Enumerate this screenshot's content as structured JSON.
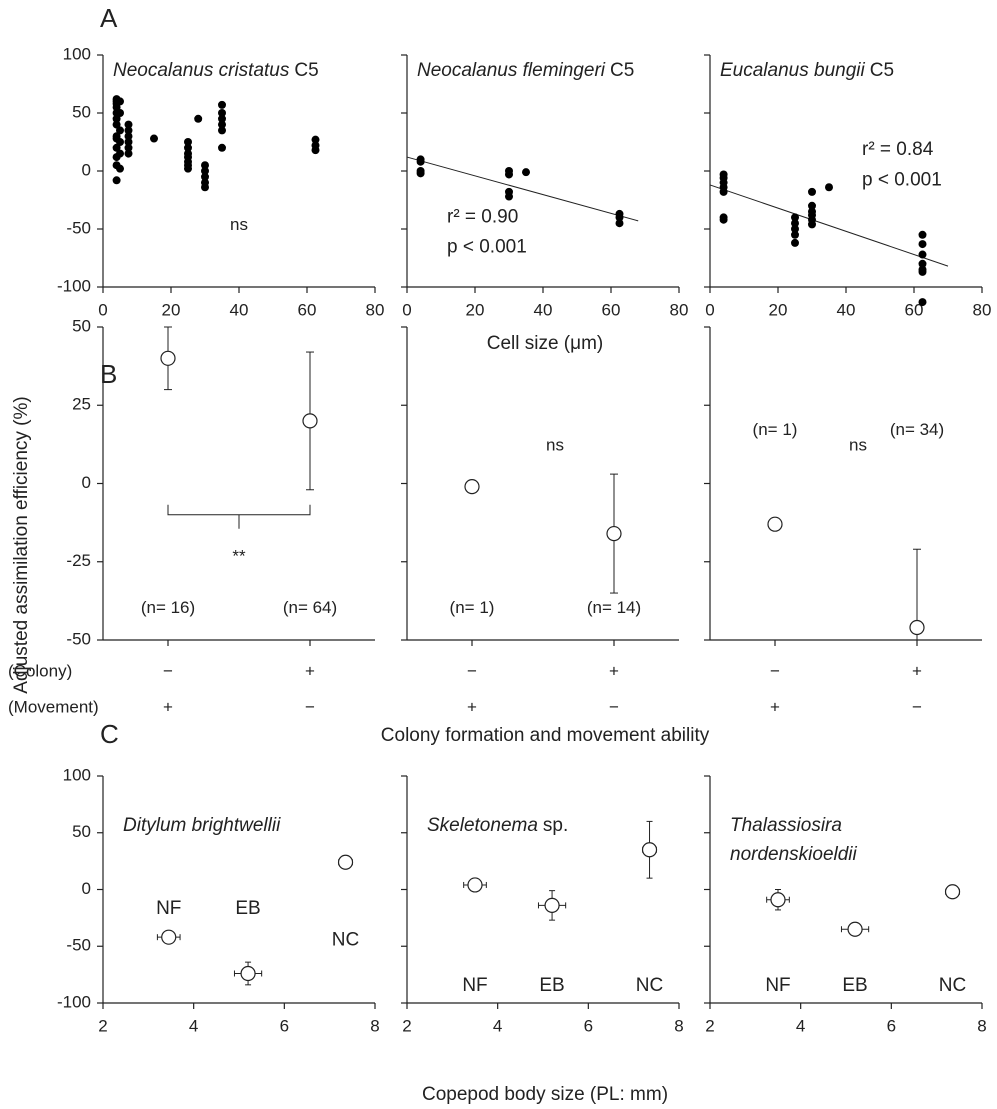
{
  "panel_labels": [
    "A",
    "B",
    "C"
  ],
  "ylabel": "Adjusted assimilation efficiency (%)",
  "xlabels": [
    "Cell size (μm)",
    "Colony formation and movement ability",
    "Copepod body size (PL: mm)"
  ],
  "row_labels": [
    "(Colony)",
    "(Movement)"
  ],
  "chart_data": [
    {
      "type": "scatter",
      "title": "Neocalanus cristatus",
      "title_suffix": "C5",
      "x": [
        4,
        4,
        4,
        4,
        4,
        4,
        4,
        4,
        4,
        4,
        4,
        4,
        4,
        5,
        5,
        5,
        5,
        5,
        5,
        7.5,
        7.5,
        7.5,
        7.5,
        7.5,
        7.5,
        15,
        25,
        25,
        25,
        25,
        25,
        25,
        25,
        28,
        30,
        30,
        30,
        30,
        30,
        35,
        35,
        35,
        35,
        35,
        35,
        62.5,
        62.5,
        62.5
      ],
      "y": [
        62,
        60,
        58,
        55,
        50,
        45,
        40,
        30,
        28,
        20,
        12,
        5,
        -8,
        60,
        50,
        35,
        25,
        15,
        2,
        40,
        35,
        30,
        25,
        20,
        15,
        28,
        25,
        20,
        15,
        12,
        8,
        5,
        2,
        45,
        5,
        0,
        -5,
        -10,
        -14,
        57,
        50,
        45,
        40,
        35,
        20,
        27,
        22,
        18
      ],
      "xlim": [
        0,
        80
      ],
      "ylim": [
        -100,
        100
      ],
      "xticks": [
        0,
        20,
        40,
        60,
        80
      ],
      "yticks": [
        100,
        50,
        0,
        -50,
        -100
      ],
      "ytick_labels": true,
      "color": "#000000",
      "note": "ns"
    },
    {
      "type": "scatter",
      "title": "Neocalanus flemingeri",
      "title_suffix": "C5",
      "x": [
        4,
        4,
        4,
        4,
        30,
        30,
        30,
        30,
        35,
        62.5,
        62.5,
        62.5
      ],
      "y": [
        10,
        8,
        0,
        -2,
        0,
        -3,
        -18,
        -22,
        -1,
        -37,
        -40,
        -45
      ],
      "fit": {
        "x": [
          0,
          68
        ],
        "y": [
          12,
          -43
        ]
      },
      "stats": [
        "r² = 0.90",
        "p < 0.001"
      ],
      "stats_position": "lower-left",
      "xlim": [
        0,
        80
      ],
      "ylim": [
        -100,
        100
      ],
      "xticks": [
        0,
        20,
        40,
        60,
        80
      ],
      "yticks": [
        100,
        50,
        0,
        -50,
        -100
      ],
      "ytick_labels": false,
      "color": "#000000"
    },
    {
      "type": "scatter",
      "title": "Eucalanus bungii",
      "title_suffix": "C5",
      "x": [
        4,
        4,
        4,
        4,
        4,
        4,
        4,
        25,
        25,
        25,
        25,
        25,
        30,
        30,
        30,
        30,
        30,
        30,
        35,
        62.5,
        62.5,
        62.5,
        62.5,
        62.5,
        62.5,
        62.5
      ],
      "y": [
        -3,
        -6,
        -10,
        -14,
        -18,
        -40,
        -42,
        -40,
        -45,
        -50,
        -55,
        -62,
        -18,
        -30,
        -35,
        -38,
        -42,
        -46,
        -14,
        -55,
        -63,
        -72,
        -80,
        -85,
        -87,
        -113
      ],
      "fit": {
        "x": [
          0,
          70
        ],
        "y": [
          -12,
          -82
        ]
      },
      "stats": [
        "r² = 0.84",
        "p < 0.001"
      ],
      "stats_position": "upper-right",
      "xlim": [
        0,
        80
      ],
      "ylim": [
        -100,
        100
      ],
      "xticks": [
        0,
        20,
        40,
        60,
        80
      ],
      "yticks": [
        100,
        50,
        0,
        -50,
        -100
      ],
      "ytick_labels": false,
      "color": "#000000"
    },
    {
      "type": "point",
      "colony": [
        "−",
        "+"
      ],
      "movement": [
        "+",
        "−"
      ],
      "values": [
        40,
        20
      ],
      "error": [
        10,
        22
      ],
      "n_labels": [
        "(n= 16)",
        "(n= 64)"
      ],
      "n_label_position": "bottom",
      "note": "**",
      "bracket": true,
      "ylim": [
        -50,
        50
      ],
      "yticks": [
        50,
        25,
        0,
        -25,
        -50
      ],
      "ytick_labels": true
    },
    {
      "type": "point",
      "colony": [
        "−",
        "+"
      ],
      "movement": [
        "+",
        "−"
      ],
      "values": [
        -1,
        -16
      ],
      "error": [
        null,
        19
      ],
      "n_labels": [
        "(n= 1)",
        "(n= 14)"
      ],
      "n_label_position": "bottom",
      "note": "ns",
      "bracket": false,
      "ylim": [
        -50,
        50
      ],
      "yticks": [
        50,
        25,
        0,
        -25,
        -50
      ],
      "ytick_labels": false
    },
    {
      "type": "point",
      "colony": [
        "−",
        "+"
      ],
      "movement": [
        "+",
        "−"
      ],
      "values": [
        -13,
        -46
      ],
      "error": [
        null,
        25
      ],
      "n_labels": [
        "(n= 1)",
        "(n= 34)"
      ],
      "n_label_position": "top",
      "note": "ns",
      "bracket": false,
      "ylim": [
        -50,
        50
      ],
      "yticks": [
        50,
        25,
        0,
        -25,
        -50
      ],
      "ytick_labels": false
    },
    {
      "type": "scatter_error",
      "title": "Ditylum brightwellii",
      "x": [
        3.45,
        5.2,
        7.35
      ],
      "xerr": [
        0.25,
        0.3,
        0.15
      ],
      "y": [
        -42,
        -74,
        24
      ],
      "yerr": [
        4,
        10,
        5
      ],
      "labels": [
        "NF",
        "EB",
        "NC"
      ],
      "label_positions": [
        "upper",
        "upper",
        "middle"
      ],
      "xlim": [
        2,
        8
      ],
      "ylim": [
        -100,
        100
      ],
      "xticks": [
        2,
        4,
        6,
        8
      ],
      "yticks": [
        100,
        50,
        0,
        -50,
        -100
      ],
      "ytick_labels": true
    },
    {
      "type": "scatter_error",
      "title": "Skeletonema",
      "title_suffix": "sp.",
      "x": [
        3.5,
        5.2,
        7.35
      ],
      "xerr": [
        0.25,
        0.3,
        0.15
      ],
      "y": [
        4,
        -14,
        35
      ],
      "yerr": [
        5,
        13,
        25
      ],
      "labels": [
        "NF",
        "EB",
        "NC"
      ],
      "label_positions": [
        "bottom",
        "bottom",
        "bottom"
      ],
      "xlim": [
        2,
        8
      ],
      "ylim": [
        -100,
        100
      ],
      "xticks": [
        2,
        4,
        6,
        8
      ],
      "yticks": [
        100,
        50,
        0,
        -50,
        -100
      ],
      "ytick_labels": false
    },
    {
      "type": "scatter_error",
      "title": [
        "Thalassiosira",
        "nordenskioeldii"
      ],
      "x": [
        3.5,
        5.2,
        7.35
      ],
      "xerr": [
        0.25,
        0.3,
        0.15
      ],
      "y": [
        -9,
        -35,
        -2
      ],
      "yerr": [
        9,
        3,
        5
      ],
      "labels": [
        "NF",
        "EB",
        "NC"
      ],
      "label_positions": [
        "bottom",
        "bottom",
        "bottom"
      ],
      "xlim": [
        2,
        8
      ],
      "ylim": [
        -100,
        100
      ],
      "xticks": [
        2,
        4,
        6,
        8
      ],
      "yticks": [
        100,
        50,
        0,
        -50,
        -100
      ],
      "ytick_labels": false
    }
  ]
}
